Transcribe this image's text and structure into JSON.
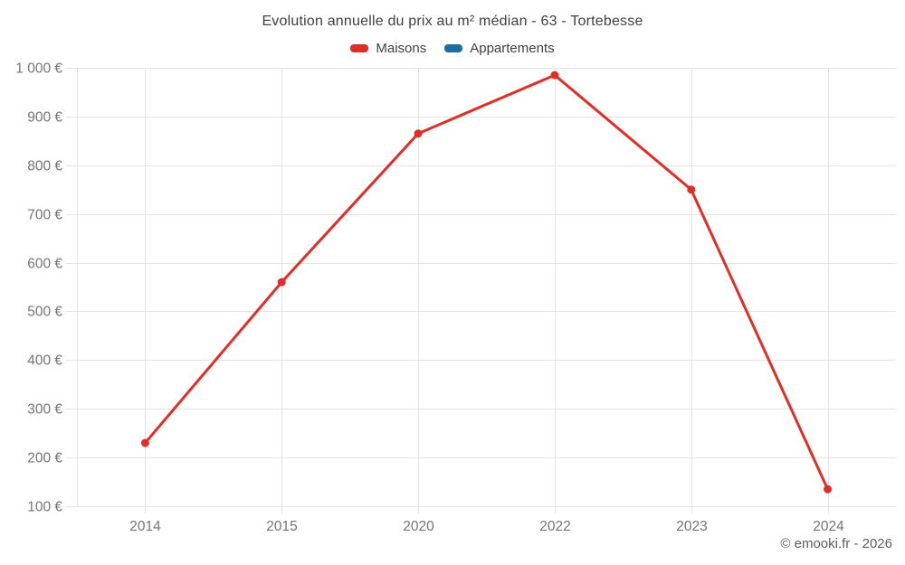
{
  "chart_data": {
    "type": "line",
    "title": "Evolution annuelle du prix au m² médian - 63 - Tortebesse",
    "categories": [
      "2014",
      "2015",
      "2020",
      "2022",
      "2023",
      "2024"
    ],
    "series": [
      {
        "name": "Maisons",
        "color": "#e02e26",
        "values": [
          230,
          560,
          865,
          985,
          750,
          135
        ]
      },
      {
        "name": "Appartements",
        "color": "#1b6ea5",
        "values": []
      }
    ],
    "ylim": [
      100,
      1000
    ],
    "yticks": [
      {
        "value": 100,
        "label": "100 €"
      },
      {
        "value": 200,
        "label": "200 €"
      },
      {
        "value": 300,
        "label": "300 €"
      },
      {
        "value": 400,
        "label": "400 €"
      },
      {
        "value": 500,
        "label": "500 €"
      },
      {
        "value": 600,
        "label": "600 €"
      },
      {
        "value": 700,
        "label": "700 €"
      },
      {
        "value": 800,
        "label": "800 €"
      },
      {
        "value": 900,
        "label": "900 €"
      },
      {
        "value": 1000,
        "label": "1 000 €"
      }
    ],
    "unit": "€",
    "grid": true,
    "legend_position": "top",
    "copyright": "© emooki.fr - 2026"
  }
}
